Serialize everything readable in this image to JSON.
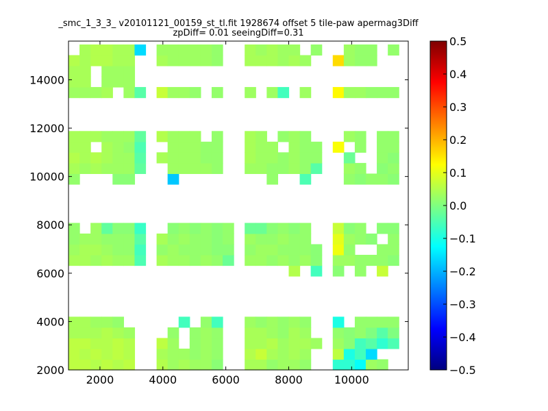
{
  "chart_data": {
    "type": "heatmap",
    "title_line1": "_smc_1_3_3_ v20101121_00159_st_tl.fit 1928674 offset 5 tile-paw apermag3Diff",
    "title_line2": "zpDiff= 0.01 seeingDiff=0.31",
    "xlabel": "",
    "ylabel": "",
    "xlim": [
      1000,
      11800
    ],
    "ylim": [
      2000,
      15600
    ],
    "x_ticks": [
      2000,
      4000,
      6000,
      8000,
      10000
    ],
    "y_ticks": [
      2000,
      4000,
      6000,
      8000,
      10000,
      12000,
      14000
    ],
    "x_tick_labels": [
      "2000",
      "4000",
      "6000",
      "8000",
      "10000"
    ],
    "y_tick_labels": [
      "2000",
      "4000",
      "6000",
      "8000",
      "10000",
      "12000",
      "14000"
    ],
    "colorbar": {
      "min": -0.5,
      "max": 0.5,
      "ticks": [
        -0.5,
        -0.4,
        -0.3,
        -0.2,
        -0.1,
        0.0,
        0.1,
        0.2,
        0.3,
        0.4,
        0.5
      ],
      "tick_labels": [
        "−0.5",
        "−0.4",
        "−0.3",
        "−0.2",
        "−0.1",
        "0.0",
        "0.1",
        "0.2",
        "0.3",
        "0.4",
        "0.5"
      ],
      "colormap": "jet"
    },
    "grid": false,
    "cell_width": 350,
    "cell_height": 440,
    "x_bins": [
      1000,
      1350,
      1700,
      2050,
      2400,
      2750,
      3100,
      3450,
      3800,
      4150,
      4500,
      4850,
      5200,
      5550,
      5900,
      6250,
      6600,
      6950,
      7300,
      7650,
      8000,
      8350,
      8700,
      9050,
      9400,
      9750,
      10100,
      10450,
      10800,
      11150,
      11500
    ],
    "y_bins": [
      2000,
      2440,
      2880,
      3320,
      3760,
      5880,
      6320,
      6760,
      7200,
      7640,
      9680,
      10120,
      10560,
      11000,
      11440,
      13260,
      13700,
      14140,
      14580,
      15020
    ],
    "row_values": [
      [
        0.06,
        0.06,
        0.05,
        0.06,
        0.05,
        0.06,
        null,
        null,
        0.05,
        0.03,
        0.04,
        0.03,
        0.03,
        0.01,
        null,
        null,
        0.04,
        0.04,
        0.02,
        0.03,
        0.03,
        0.02,
        null,
        null,
        -0.08,
        -0.08,
        -0.12,
        0.03,
        0.02,
        null
      ],
      [
        0.06,
        0.05,
        0.06,
        0.05,
        0.06,
        0.05,
        null,
        null,
        0.04,
        0.03,
        0.03,
        0.02,
        0.03,
        0.02,
        null,
        null,
        0.05,
        0.07,
        0.04,
        0.03,
        0.04,
        0.03,
        null,
        null,
        0.06,
        -0.1,
        -0.06,
        -0.16,
        null,
        null
      ],
      [
        0.06,
        0.06,
        0.05,
        0.05,
        0.06,
        0.05,
        null,
        null,
        0.06,
        0.03,
        null,
        0.02,
        0.03,
        0.02,
        null,
        null,
        0.04,
        0.04,
        0.05,
        0.03,
        0.04,
        0.04,
        0.03,
        null,
        0.03,
        0.01,
        -0.06,
        -0.04,
        -0.08,
        -0.05
      ],
      [
        0.04,
        0.04,
        0.04,
        0.05,
        0.04,
        0.03,
        null,
        null,
        null,
        0.02,
        null,
        0.02,
        0.03,
        0.02,
        null,
        null,
        0.04,
        0.04,
        0.03,
        0.02,
        0.04,
        0.03,
        null,
        null,
        0.02,
        0.01,
        0.02,
        0.0,
        -0.04,
        0.0
      ],
      [
        0.04,
        0.04,
        0.03,
        0.03,
        0.02,
        null,
        null,
        null,
        null,
        null,
        -0.06,
        null,
        0.02,
        -0.06,
        null,
        null,
        0.03,
        0.02,
        0.03,
        0.02,
        0.03,
        0.02,
        null,
        null,
        -0.1,
        null,
        0.02,
        0.02,
        0.02,
        0.02
      ],
      [
        null,
        null,
        null,
        null,
        null,
        null,
        null,
        null,
        null,
        null,
        null,
        null,
        null,
        null,
        null,
        null,
        null,
        null,
        null,
        null,
        0.05,
        null,
        -0.06,
        null,
        0.01,
        null,
        0.02,
        null,
        0.07,
        null
      ],
      [
        0.04,
        0.04,
        0.03,
        0.04,
        0.03,
        0.03,
        -0.05,
        null,
        0.04,
        0.03,
        0.03,
        0.02,
        0.03,
        0.02,
        -0.02,
        null,
        0.03,
        0.03,
        0.02,
        0.03,
        0.02,
        0.03,
        0.01,
        null,
        0.03,
        0.03,
        0.02,
        0.02,
        0.02,
        0.01
      ],
      [
        0.03,
        0.04,
        0.04,
        0.03,
        0.02,
        0.02,
        -0.06,
        null,
        0.02,
        0.03,
        0.02,
        0.02,
        0.02,
        0.01,
        0.01,
        null,
        0.02,
        0.03,
        0.03,
        0.02,
        0.02,
        0.02,
        0.01,
        null,
        0.11,
        0.02,
        null,
        null,
        0.02,
        0.02
      ],
      [
        0.02,
        0.03,
        0.03,
        0.02,
        0.02,
        0.02,
        -0.04,
        null,
        0.04,
        0.02,
        0.03,
        0.02,
        0.02,
        0.01,
        0.02,
        null,
        0.03,
        0.02,
        0.02,
        0.03,
        0.02,
        0.02,
        null,
        null,
        0.1,
        0.03,
        0.02,
        0.01,
        null,
        0.02
      ],
      [
        0.02,
        null,
        0.03,
        -0.03,
        0.01,
        0.01,
        -0.07,
        null,
        null,
        0.01,
        0.02,
        0.01,
        0.02,
        0.01,
        0.02,
        null,
        -0.02,
        -0.02,
        0.01,
        0.02,
        0.01,
        0.02,
        null,
        null,
        0.07,
        0.01,
        0.02,
        null,
        0.01,
        0.01
      ],
      [
        0.02,
        null,
        null,
        null,
        0.01,
        0.01,
        null,
        null,
        null,
        -0.18,
        null,
        null,
        null,
        null,
        null,
        null,
        null,
        null,
        0.02,
        null,
        null,
        -0.05,
        null,
        null,
        null,
        0.02,
        0.01,
        0.02,
        0.02,
        0.01
      ],
      [
        0.04,
        0.03,
        0.04,
        0.03,
        0.03,
        0.03,
        -0.03,
        null,
        null,
        0.03,
        0.03,
        0.03,
        0.03,
        0.02,
        null,
        null,
        0.03,
        0.03,
        0.02,
        0.02,
        0.03,
        0.02,
        -0.04,
        null,
        null,
        0.03,
        0.02,
        null,
        0.01,
        0.02
      ],
      [
        0.05,
        0.04,
        0.05,
        0.04,
        0.03,
        0.03,
        -0.04,
        null,
        0.04,
        0.03,
        0.03,
        0.03,
        0.02,
        0.02,
        null,
        null,
        0.04,
        0.03,
        0.03,
        0.02,
        0.03,
        0.02,
        0.02,
        null,
        null,
        -0.02,
        null,
        null,
        0.02,
        0.01
      ],
      [
        0.04,
        0.04,
        null,
        0.04,
        0.03,
        0.02,
        -0.05,
        null,
        null,
        0.03,
        0.03,
        0.03,
        0.02,
        0.02,
        null,
        null,
        0.04,
        0.03,
        0.03,
        null,
        0.03,
        0.02,
        0.02,
        null,
        0.12,
        null,
        0.02,
        null,
        0.02,
        0.02
      ],
      [
        0.04,
        0.04,
        0.04,
        0.03,
        0.03,
        0.03,
        -0.03,
        null,
        0.05,
        0.03,
        0.03,
        0.03,
        null,
        0.02,
        null,
        null,
        0.04,
        0.03,
        null,
        0.02,
        0.03,
        0.02,
        null,
        null,
        null,
        0.03,
        0.02,
        null,
        0.02,
        0.02
      ],
      [
        0.03,
        0.03,
        0.03,
        0.04,
        null,
        0.03,
        -0.04,
        null,
        0.07,
        0.03,
        0.03,
        0.02,
        null,
        0.02,
        null,
        null,
        0.03,
        null,
        0.03,
        -0.06,
        null,
        0.03,
        null,
        null,
        0.13,
        0.03,
        0.03,
        0.02,
        0.02,
        0.02
      ],
      [
        0.04,
        0.04,
        null,
        0.03,
        0.03,
        0.03,
        null,
        null,
        null,
        null,
        null,
        null,
        null,
        null,
        null,
        null,
        null,
        null,
        null,
        null,
        null,
        null,
        null,
        null,
        null,
        null,
        null,
        null,
        null,
        null
      ],
      [
        0.04,
        0.04,
        null,
        0.03,
        0.03,
        0.03,
        null,
        null,
        null,
        null,
        null,
        null,
        null,
        null,
        null,
        null,
        null,
        null,
        null,
        null,
        null,
        null,
        null,
        null,
        null,
        null,
        null,
        null,
        null,
        null
      ],
      [
        0.05,
        0.04,
        0.05,
        0.05,
        0.04,
        0.04,
        null,
        null,
        0.04,
        0.03,
        0.03,
        0.03,
        0.03,
        0.02,
        null,
        null,
        0.04,
        0.04,
        0.04,
        0.03,
        0.04,
        0.03,
        null,
        null,
        0.16,
        0.03,
        0.02,
        0.02,
        null,
        null
      ],
      [
        null,
        0.04,
        0.05,
        0.05,
        0.04,
        0.04,
        -0.16,
        null,
        0.03,
        0.03,
        0.03,
        0.03,
        0.03,
        0.02,
        null,
        null,
        0.04,
        0.03,
        0.04,
        0.03,
        0.03,
        null,
        0.02,
        null,
        null,
        0.03,
        0.02,
        0.02,
        null,
        0.02
      ]
    ]
  }
}
